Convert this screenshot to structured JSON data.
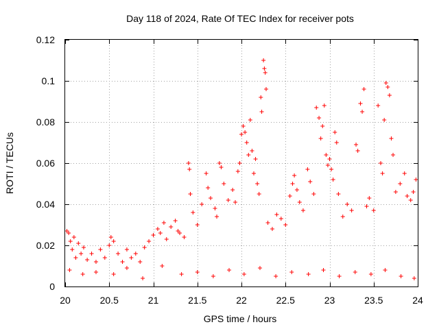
{
  "chart_data": {
    "type": "scatter",
    "title": "Day 118 of 2024, Rate Of TEC Index for receiver pots",
    "xlabel": "GPS time / hours",
    "ylabel": "ROTI / TECUs",
    "xlim": [
      20,
      24
    ],
    "ylim": [
      0,
      0.12
    ],
    "x_ticks": [
      20,
      20.5,
      21,
      21.5,
      22,
      22.5,
      23,
      23.5,
      24
    ],
    "x_tick_labels": [
      "20",
      "20.5",
      "21",
      "21.5",
      "22",
      "22.5",
      "23",
      "23.5",
      "24"
    ],
    "y_ticks": [
      0,
      0.02,
      0.04,
      0.06,
      0.08,
      0.1,
      0.12
    ],
    "y_tick_labels": [
      "0",
      "0.02",
      "0.04",
      "0.06",
      "0.08",
      "0.1",
      "0.12"
    ],
    "grid": true,
    "marker": "+",
    "series": [
      {
        "name": "ROTI",
        "color": "#ff0000",
        "points": [
          [
            20.02,
            0.027
          ],
          [
            20.04,
            0.026
          ],
          [
            20.06,
            0.022
          ],
          [
            20.08,
            0.018
          ],
          [
            20.1,
            0.024
          ],
          [
            20.12,
            0.014
          ],
          [
            20.15,
            0.021
          ],
          [
            20.18,
            0.016
          ],
          [
            20.21,
            0.019
          ],
          [
            20.25,
            0.013
          ],
          [
            20.3,
            0.016
          ],
          [
            20.35,
            0.012
          ],
          [
            20.4,
            0.018
          ],
          [
            20.45,
            0.014
          ],
          [
            20.5,
            0.02
          ],
          [
            20.52,
            0.024
          ],
          [
            20.55,
            0.022
          ],
          [
            20.6,
            0.016
          ],
          [
            20.65,
            0.012
          ],
          [
            20.7,
            0.018
          ],
          [
            20.75,
            0.014
          ],
          [
            20.8,
            0.016
          ],
          [
            20.85,
            0.012
          ],
          [
            20.9,
            0.019
          ],
          [
            20.95,
            0.022
          ],
          [
            21.0,
            0.025
          ],
          [
            21.05,
            0.028
          ],
          [
            21.08,
            0.026
          ],
          [
            21.12,
            0.031
          ],
          [
            21.15,
            0.023
          ],
          [
            21.2,
            0.029
          ],
          [
            21.25,
            0.032
          ],
          [
            21.28,
            0.027
          ],
          [
            21.3,
            0.026
          ],
          [
            21.35,
            0.024
          ],
          [
            21.4,
            0.06
          ],
          [
            21.41,
            0.057
          ],
          [
            21.42,
            0.045
          ],
          [
            21.45,
            0.036
          ],
          [
            21.5,
            0.03
          ],
          [
            21.55,
            0.04
          ],
          [
            21.6,
            0.055
          ],
          [
            21.62,
            0.048
          ],
          [
            21.65,
            0.043
          ],
          [
            21.7,
            0.038
          ],
          [
            21.72,
            0.034
          ],
          [
            21.75,
            0.06
          ],
          [
            21.77,
            0.058
          ],
          [
            21.8,
            0.05
          ],
          [
            21.85,
            0.042
          ],
          [
            21.9,
            0.047
          ],
          [
            21.93,
            0.041
          ],
          [
            21.96,
            0.056
          ],
          [
            21.98,
            0.06
          ],
          [
            22.0,
            0.074
          ],
          [
            22.02,
            0.078
          ],
          [
            22.04,
            0.075
          ],
          [
            22.06,
            0.07
          ],
          [
            22.08,
            0.064
          ],
          [
            22.1,
            0.081
          ],
          [
            22.12,
            0.066
          ],
          [
            22.14,
            0.055
          ],
          [
            22.16,
            0.062
          ],
          [
            22.18,
            0.05
          ],
          [
            22.2,
            0.045
          ],
          [
            22.22,
            0.092
          ],
          [
            22.23,
            0.085
          ],
          [
            22.25,
            0.11
          ],
          [
            22.26,
            0.106
          ],
          [
            22.27,
            0.104
          ],
          [
            22.28,
            0.096
          ],
          [
            22.3,
            0.031
          ],
          [
            22.35,
            0.028
          ],
          [
            22.4,
            0.035
          ],
          [
            22.45,
            0.033
          ],
          [
            22.5,
            0.03
          ],
          [
            22.55,
            0.044
          ],
          [
            22.58,
            0.05
          ],
          [
            22.6,
            0.054
          ],
          [
            22.63,
            0.047
          ],
          [
            22.66,
            0.041
          ],
          [
            22.7,
            0.037
          ],
          [
            22.75,
            0.057
          ],
          [
            22.78,
            0.051
          ],
          [
            22.82,
            0.045
          ],
          [
            22.85,
            0.087
          ],
          [
            22.88,
            0.082
          ],
          [
            22.9,
            0.072
          ],
          [
            22.92,
            0.078
          ],
          [
            22.94,
            0.088
          ],
          [
            22.96,
            0.064
          ],
          [
            22.98,
            0.059
          ],
          [
            23.0,
            0.062
          ],
          [
            23.02,
            0.057
          ],
          [
            23.04,
            0.052
          ],
          [
            23.06,
            0.075
          ],
          [
            23.08,
            0.07
          ],
          [
            23.1,
            0.045
          ],
          [
            23.15,
            0.034
          ],
          [
            23.2,
            0.04
          ],
          [
            23.25,
            0.037
          ],
          [
            23.3,
            0.069
          ],
          [
            23.32,
            0.066
          ],
          [
            23.35,
            0.089
          ],
          [
            23.37,
            0.085
          ],
          [
            23.39,
            0.096
          ],
          [
            23.42,
            0.039
          ],
          [
            23.45,
            0.043
          ],
          [
            23.5,
            0.037
          ],
          [
            23.55,
            0.088
          ],
          [
            23.58,
            0.06
          ],
          [
            23.6,
            0.055
          ],
          [
            23.62,
            0.081
          ],
          [
            23.64,
            0.099
          ],
          [
            23.66,
            0.097
          ],
          [
            23.68,
            0.093
          ],
          [
            23.7,
            0.072
          ],
          [
            23.72,
            0.064
          ],
          [
            23.75,
            0.046
          ],
          [
            23.8,
            0.05
          ],
          [
            23.85,
            0.055
          ],
          [
            23.88,
            0.044
          ],
          [
            23.92,
            0.042
          ],
          [
            23.95,
            0.046
          ],
          [
            23.98,
            0.052
          ],
          [
            20.05,
            0.008
          ],
          [
            20.2,
            0.006
          ],
          [
            20.35,
            0.007
          ],
          [
            20.55,
            0.006
          ],
          [
            20.7,
            0.009
          ],
          [
            20.88,
            0.004
          ],
          [
            21.1,
            0.01
          ],
          [
            21.32,
            0.006
          ],
          [
            21.5,
            0.007
          ],
          [
            21.68,
            0.005
          ],
          [
            21.86,
            0.008
          ],
          [
            22.03,
            0.006
          ],
          [
            22.21,
            0.009
          ],
          [
            22.39,
            0.005
          ],
          [
            22.57,
            0.007
          ],
          [
            22.76,
            0.006
          ],
          [
            22.93,
            0.008
          ],
          [
            23.11,
            0.005
          ],
          [
            23.29,
            0.007
          ],
          [
            23.47,
            0.006
          ],
          [
            23.63,
            0.008
          ],
          [
            23.81,
            0.005
          ],
          [
            23.96,
            0.004
          ]
        ]
      }
    ]
  }
}
